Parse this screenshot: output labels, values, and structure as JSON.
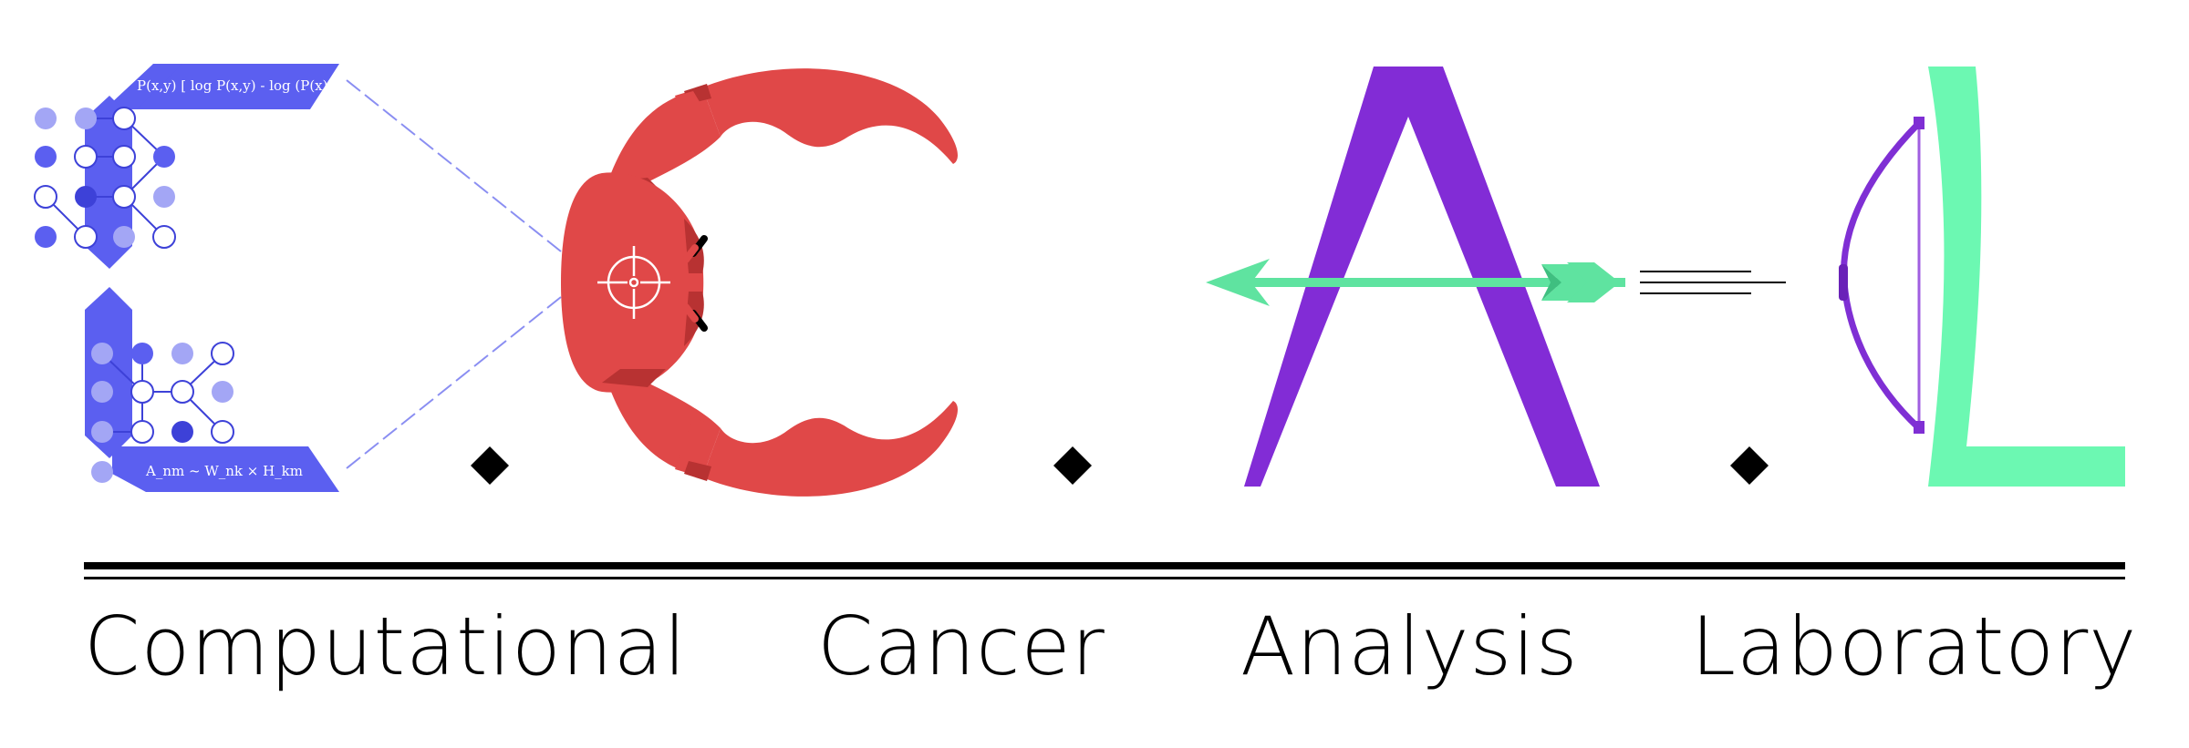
{
  "logo": {
    "formula_top": "P(x,y) [ log P(x,y) - log (P(x)P(y)) ]",
    "formula_bottom": "A_nm ~ W_nk × H_km",
    "words": [
      "Computational",
      "Cancer",
      "Analysis",
      "Laboratory"
    ],
    "icons": {
      "network_letter": "network-graph-letter-c",
      "crab_claw": "crab-claw-letter-c",
      "target": "crosshair-target-icon",
      "arrow": "arrow-icon",
      "bow": "bow-icon"
    },
    "colors": {
      "network_blue": "#5b5ff0",
      "network_light": "#a3a6f5",
      "crab_red": "#e04848",
      "crab_dark": "#b83232",
      "letter_a_purple": "#822cd6",
      "letter_l_green": "#6cf8b2",
      "arrow_green": "#5fe3a0",
      "bow_purple": "#7f2fd4",
      "diamond": "#000000",
      "rule": "#000000"
    }
  }
}
